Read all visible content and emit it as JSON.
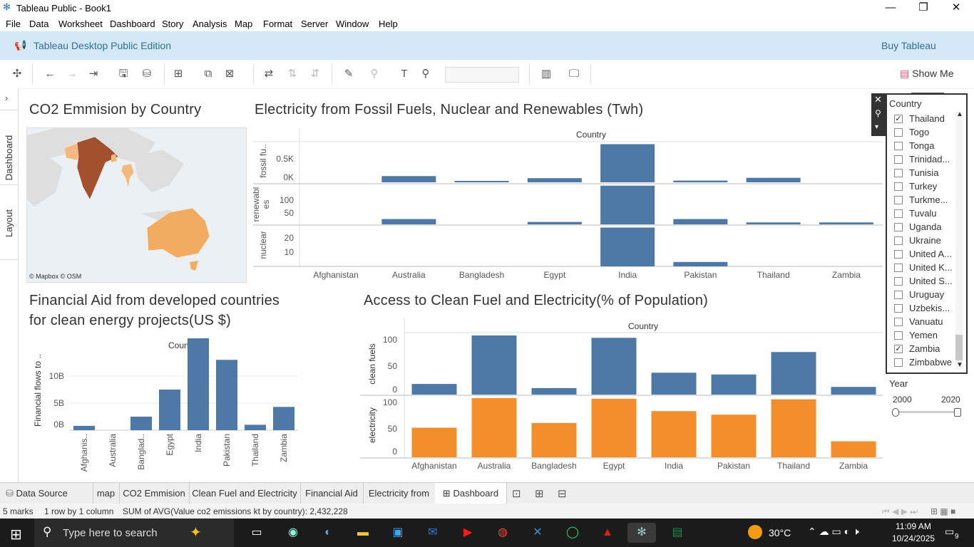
{
  "window": {
    "title": "Tableau Public - Book1"
  },
  "menu": [
    "File",
    "Data",
    "Worksheet",
    "Dashboard",
    "Story",
    "Analysis",
    "Map",
    "Format",
    "Server",
    "Window",
    "Help"
  ],
  "banner": {
    "text": "Tableau Desktop Public Edition",
    "buy": "Buy Tableau"
  },
  "toolbar": {
    "show_me": "Show Me"
  },
  "left_rail": {
    "dashboard": "Dashboard",
    "layout": "Layout"
  },
  "map": {
    "title": "CO2 Emmision by Country",
    "attribution": "© Mapbox © OSM"
  },
  "electricity": {
    "title": "Electricity from Fossil Fuels, Nuclear and Renewables (Twh)",
    "header": "Country",
    "row_labels": [
      "fossil fu..",
      "renewabl es",
      "nuclear"
    ],
    "fossil_ticks": [
      "0.5K",
      "0K"
    ],
    "renew_ticks": [
      "100",
      "50"
    ],
    "nuclear_ticks": [
      "20",
      "10"
    ]
  },
  "financial": {
    "title_line1": "Financial Aid from developed countries",
    "title_line2": "for clean energy projects(US $)",
    "header": "Country",
    "ylabel": "Financial flows to ..",
    "yticks": [
      "10B",
      "5B",
      "0B"
    ],
    "categories": [
      "Afghanis..",
      "Australia",
      "Banglad..",
      "Egypt",
      "India",
      "Pakistan",
      "Thailand",
      "Zambia"
    ]
  },
  "access": {
    "title": "Access to Clean Fuel and Electricity(% of Population)",
    "header": "Country",
    "row_labels": [
      "clean fuels",
      "electricity"
    ],
    "ticks": [
      "100",
      "50",
      "0"
    ]
  },
  "filter": {
    "title": "Country",
    "items": [
      {
        "label": "Thailand",
        "checked": true
      },
      {
        "label": "Togo",
        "checked": false
      },
      {
        "label": "Tonga",
        "checked": false
      },
      {
        "label": "Trinidad...",
        "checked": false
      },
      {
        "label": "Tunisia",
        "checked": false
      },
      {
        "label": "Turkey",
        "checked": false
      },
      {
        "label": "Turkme...",
        "checked": false
      },
      {
        "label": "Tuvalu",
        "checked": false
      },
      {
        "label": "Uganda",
        "checked": false
      },
      {
        "label": "Ukraine",
        "checked": false
      },
      {
        "label": "United A...",
        "checked": false
      },
      {
        "label": "United K...",
        "checked": false
      },
      {
        "label": "United S...",
        "checked": false
      },
      {
        "label": "Uruguay",
        "checked": false
      },
      {
        "label": "Uzbekis...",
        "checked": false
      },
      {
        "label": "Vanuatu",
        "checked": false
      },
      {
        "label": "Yemen",
        "checked": false
      },
      {
        "label": "Zambia",
        "checked": true
      },
      {
        "label": "Zimbabwe",
        "checked": false
      }
    ]
  },
  "year": {
    "title": "Year",
    "min": "2000",
    "max": "2020"
  },
  "sheet_tabs": [
    "Data Source",
    "map",
    "CO2 Emmision",
    "Clean Fuel and Electricity",
    "Financial Aid",
    "Electricity from",
    "Dashboard"
  ],
  "status": {
    "marks": "5 marks",
    "rows": "1 row by 1 column",
    "sum": "SUM of AVG(Value co2 emissions kt by country): 2,432,228"
  },
  "taskbar": {
    "search": "Type here to search",
    "temp": "30°C",
    "time": "11:09 AM",
    "date": "10/24/2025",
    "notif": "9"
  },
  "colors": {
    "blue": "#4e79a7",
    "orange": "#f28e2b",
    "banner": "#d5e8f8"
  },
  "chart_data": [
    {
      "type": "bar",
      "title": "Electricity from Fossil Fuels, Nuclear and Renewables (Twh)",
      "categories": [
        "Afghanistan",
        "Australia",
        "Bangladesh",
        "Egypt",
        "India",
        "Pakistan",
        "Thailand",
        "Zambia"
      ],
      "series": [
        {
          "name": "fossil fu..",
          "values": [
            0,
            180,
            40,
            120,
            1100,
            50,
            130,
            0
          ]
        },
        {
          "name": "renewabl es",
          "values": [
            0,
            22,
            0,
            10,
            160,
            22,
            8,
            8
          ]
        },
        {
          "name": "nuclear",
          "values": [
            0,
            0,
            0,
            0,
            44,
            5,
            0,
            0
          ]
        }
      ]
    },
    {
      "type": "bar",
      "title": "Financial Aid from developed countries for clean energy projects(US $)",
      "categories": [
        "Afghanis..",
        "Australia",
        "Banglad..",
        "Egypt",
        "India",
        "Pakistan",
        "Thailand",
        "Zambia"
      ],
      "ylabel": "Financial flows to ..",
      "values": [
        0.8,
        0,
        2.5,
        7.5,
        19.5,
        13,
        1,
        4.3
      ]
    },
    {
      "type": "bar",
      "title": "Access to Clean Fuel and Electricity(% of Population)",
      "categories": [
        "Afghanistan",
        "Australia",
        "Bangladesh",
        "Egypt",
        "India",
        "Pakistan",
        "Thailand",
        "Zambia"
      ],
      "series": [
        {
          "name": "clean fuels",
          "values": [
            18,
            100,
            11,
            96,
            37,
            34,
            72,
            13
          ]
        },
        {
          "name": "electricity",
          "values": [
            50,
            100,
            58,
            99,
            78,
            72,
            98,
            27
          ]
        }
      ],
      "ylim": [
        0,
        105
      ]
    }
  ]
}
